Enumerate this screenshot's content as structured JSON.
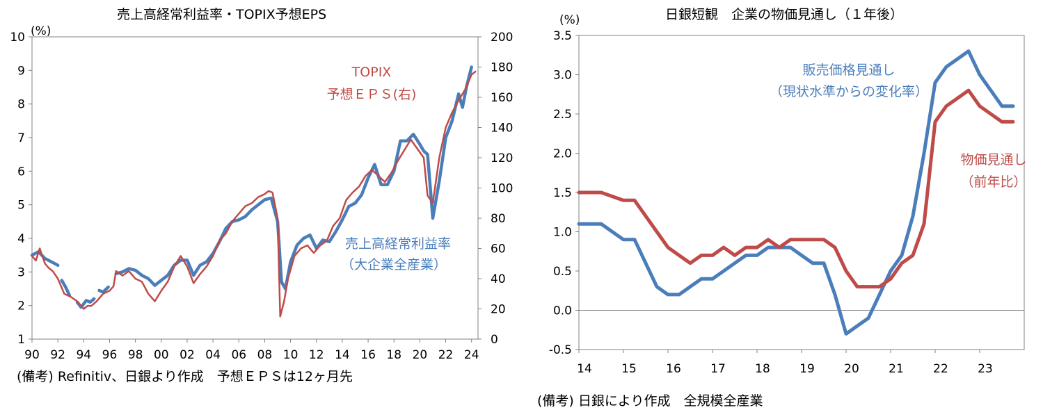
{
  "chart_data": [
    {
      "type": "line",
      "title": "売上高経常利益率・TOPIX予想EPS",
      "left_unit": "(%)",
      "ylim_left": [
        1,
        10
      ],
      "ylim_right": [
        0,
        200
      ],
      "yticks_left": [
        "1",
        "2",
        "3",
        "4",
        "5",
        "6",
        "7",
        "8",
        "9",
        "10"
      ],
      "yticks_right": [
        "0",
        "20",
        "40",
        "60",
        "80",
        "100",
        "120",
        "140",
        "160",
        "180",
        "200"
      ],
      "xlim": [
        1990,
        2024.5
      ],
      "xtick_labels": [
        "90",
        "92",
        "94",
        "96",
        "98",
        "00",
        "02",
        "04",
        "06",
        "08",
        "10",
        "12",
        "14",
        "16",
        "18",
        "20",
        "22",
        "24"
      ],
      "grid": false,
      "note": "(備考) Refinitiv、日銀より作成　予想ＥＰＳは12ヶ月先",
      "series": [
        {
          "name": "売上高経常利益率（大企業全産業）",
          "label_lines": [
            "売上高経常利益率",
            "（大企業全産業）"
          ],
          "axis": "left",
          "color": "#4a7ebb",
          "segments": [
            {
              "x": [
                1990.0,
                1990.5,
                1991.0,
                1991.5,
                1992.0
              ],
              "y": [
                3.5,
                3.6,
                3.4,
                3.3,
                3.2
              ]
            },
            {
              "x": [
                1992.3,
                1992.6,
                1992.9
              ],
              "y": [
                2.75,
                2.55,
                2.3
              ]
            },
            {
              "x": [
                1993.5,
                1993.8,
                1994.2,
                1994.5,
                1994.8
              ],
              "y": [
                2.1,
                1.95,
                2.15,
                2.1,
                2.2
              ]
            },
            {
              "x": [
                1995.2,
                1995.5,
                1995.9
              ],
              "y": [
                2.45,
                2.4,
                2.55
              ]
            },
            {
              "x": [
                1996.5,
                1997.0,
                1997.5,
                1998.0,
                1998.5,
                1999.0,
                1999.5,
                2000.0,
                2000.5,
                2001.0,
                2001.5,
                2002.0,
                2002.5,
                2003.0,
                2003.5,
                2004.0,
                2004.5,
                2005.0,
                2005.5,
                2006.0,
                2006.5,
                2007.0,
                2007.5,
                2008.0,
                2008.5,
                2009.0,
                2009.3,
                2009.6,
                2010.0,
                2010.5,
                2011.0,
                2011.5,
                2012.0,
                2012.5,
                2013.0,
                2013.5,
                2014.0,
                2014.5,
                2015.0,
                2015.5,
                2016.0,
                2016.5,
                2017.0,
                2017.5,
                2018.0,
                2018.5,
                2019.0,
                2019.5,
                2020.0,
                2020.3,
                2020.6,
                2021.0,
                2021.5,
                2022.0,
                2022.5,
                2023.0,
                2023.3,
                2023.6,
                2024.0
              ],
              "y": [
                2.95,
                3.0,
                3.1,
                3.05,
                2.9,
                2.8,
                2.6,
                2.75,
                2.9,
                3.2,
                3.35,
                3.35,
                2.9,
                3.2,
                3.3,
                3.55,
                3.9,
                4.3,
                4.5,
                4.55,
                4.65,
                4.85,
                5.0,
                5.15,
                5.2,
                4.5,
                2.7,
                2.5,
                3.3,
                3.8,
                4.0,
                4.1,
                3.7,
                3.95,
                3.9,
                4.2,
                4.55,
                4.95,
                5.05,
                5.3,
                5.8,
                6.2,
                5.6,
                5.6,
                6.0,
                6.9,
                6.9,
                7.1,
                6.8,
                6.6,
                6.5,
                4.6,
                5.7,
                7.0,
                7.5,
                8.3,
                7.9,
                8.5,
                9.1
              ]
            }
          ]
        },
        {
          "name": "TOPIX予想ＥＰＳ(右)",
          "label_lines": [
            "TOPIX",
            "予想ＥＰＳ(右)"
          ],
          "axis": "right",
          "color": "#be4b48",
          "segments": [
            {
              "x": [
                1990.0,
                1990.3,
                1990.6,
                1991.0,
                1991.3,
                1991.6,
                1992.0,
                1992.5,
                1993.0,
                1993.5,
                1994.0,
                1994.3,
                1994.6,
                1995.0,
                1995.5,
                1996.0,
                1996.3,
                1996.5,
                1997.0,
                1997.5,
                1998.0,
                1998.5,
                1999.0,
                1999.5,
                2000.0,
                2000.5,
                2001.0,
                2001.5,
                2002.0,
                2002.5,
                2003.0,
                2003.5,
                2004.0,
                2004.5,
                2005.0,
                2005.5,
                2006.0,
                2006.5,
                2007.0,
                2007.5,
                2008.0,
                2008.3,
                2008.6,
                2009.0,
                2009.2,
                2009.5,
                2009.8,
                2010.3,
                2010.8,
                2011.3,
                2011.8,
                2012.3,
                2012.8,
                2013.3,
                2013.8,
                2014.3,
                2014.8,
                2015.3,
                2015.8,
                2016.3,
                2016.8,
                2017.3,
                2017.8,
                2018.3,
                2018.8,
                2019.3,
                2019.8,
                2020.3,
                2020.6,
                2021.0,
                2021.5,
                2022.0,
                2022.5,
                2023.0,
                2023.5,
                2024.0,
                2024.3
              ],
              "y": [
                55,
                52,
                60,
                50,
                47,
                45,
                40,
                30,
                28,
                25,
                20,
                22,
                22,
                25,
                30,
                32,
                35,
                45,
                42,
                45,
                40,
                38,
                30,
                25,
                32,
                38,
                48,
                55,
                48,
                37,
                43,
                48,
                55,
                65,
                70,
                78,
                83,
                88,
                90,
                94,
                96,
                98,
                97,
                80,
                15,
                25,
                40,
                55,
                60,
                62,
                57,
                62,
                65,
                75,
                80,
                92,
                97,
                101,
                108,
                112,
                108,
                104,
                110,
                118,
                125,
                132,
                126,
                120,
                95,
                90,
                120,
                140,
                150,
                158,
                165,
                175,
                177
              ]
            }
          ]
        }
      ]
    },
    {
      "type": "line",
      "title": "日銀短観　企業の物価見通し（１年後）",
      "left_unit": "(%)",
      "ylim": [
        -0.5,
        3.5
      ],
      "yticks": [
        "-0.5",
        "0.0",
        "0.5",
        "1.0",
        "1.5",
        "2.0",
        "2.5",
        "3.0",
        "3.5"
      ],
      "xlim": [
        2014,
        2024
      ],
      "xtick_labels": [
        "14",
        "15",
        "16",
        "17",
        "18",
        "19",
        "20",
        "21",
        "22",
        "23"
      ],
      "grid": false,
      "zero_line": true,
      "note": "(備考) 日銀により作成　全規模全産業",
      "series": [
        {
          "name": "販売価格見通し（現状水準からの変化率）",
          "label_lines": [
            "販売価格見通し",
            "（現状水準からの変化率）"
          ],
          "color": "#4a7ebb",
          "x": [
            2014.0,
            2014.5,
            2015.0,
            2015.25,
            2015.5,
            2015.75,
            2016.0,
            2016.25,
            2016.5,
            2016.75,
            2017.0,
            2017.25,
            2017.5,
            2017.75,
            2018.0,
            2018.25,
            2018.5,
            2018.75,
            2019.0,
            2019.25,
            2019.5,
            2019.75,
            2020.0,
            2020.25,
            2020.5,
            2020.75,
            2021.0,
            2021.25,
            2021.5,
            2021.75,
            2022.0,
            2022.25,
            2022.5,
            2022.75,
            2023.0,
            2023.25,
            2023.5,
            2023.75
          ],
          "y": [
            1.1,
            1.1,
            0.9,
            0.9,
            0.6,
            0.3,
            0.2,
            0.2,
            0.3,
            0.4,
            0.4,
            0.5,
            0.6,
            0.7,
            0.7,
            0.8,
            0.8,
            0.8,
            0.7,
            0.6,
            0.6,
            0.2,
            -0.3,
            -0.2,
            -0.1,
            0.2,
            0.5,
            0.7,
            1.2,
            2.0,
            2.9,
            3.1,
            3.2,
            3.3,
            3.0,
            2.8,
            2.6,
            2.6
          ]
        },
        {
          "name": "物価見通し（前年比）",
          "label_lines": [
            "物価見通し",
            "（前年比）"
          ],
          "color": "#be4b48",
          "x": [
            2014.0,
            2014.5,
            2015.0,
            2015.25,
            2015.5,
            2015.75,
            2016.0,
            2016.25,
            2016.5,
            2016.75,
            2017.0,
            2017.25,
            2017.5,
            2017.75,
            2018.0,
            2018.25,
            2018.5,
            2018.75,
            2019.0,
            2019.25,
            2019.5,
            2019.75,
            2020.0,
            2020.25,
            2020.5,
            2020.75,
            2021.0,
            2021.25,
            2021.5,
            2021.75,
            2022.0,
            2022.25,
            2022.5,
            2022.75,
            2023.0,
            2023.25,
            2023.5,
            2023.75
          ],
          "y": [
            1.5,
            1.5,
            1.4,
            1.4,
            1.2,
            1.0,
            0.8,
            0.7,
            0.6,
            0.7,
            0.7,
            0.8,
            0.7,
            0.8,
            0.8,
            0.9,
            0.8,
            0.9,
            0.9,
            0.9,
            0.9,
            0.8,
            0.5,
            0.3,
            0.3,
            0.3,
            0.4,
            0.6,
            0.7,
            1.1,
            2.4,
            2.6,
            2.7,
            2.8,
            2.6,
            2.5,
            2.4,
            2.4
          ]
        }
      ]
    }
  ]
}
